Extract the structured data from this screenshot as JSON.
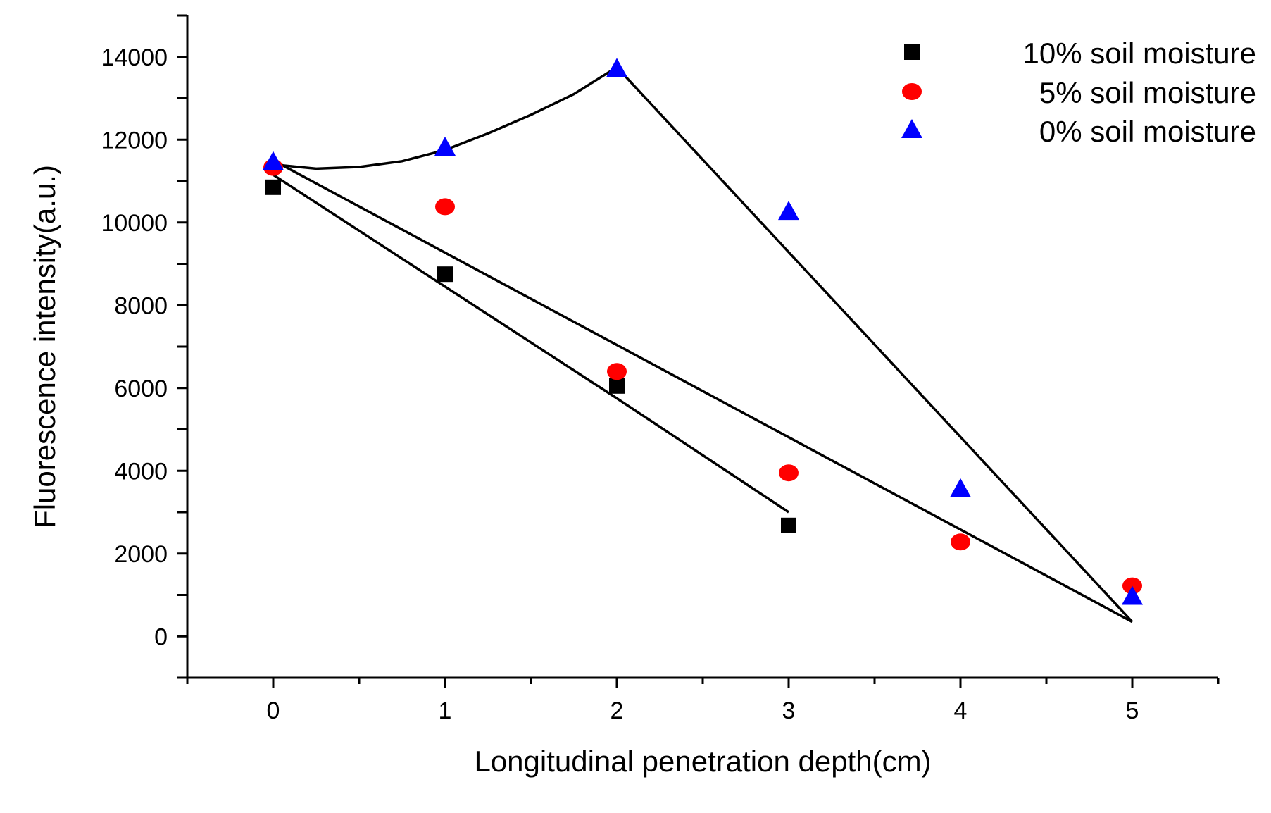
{
  "chart_data": {
    "type": "scatter",
    "title": "",
    "xlabel": "Longitudinal penetration depth(cm)",
    "ylabel": "Fluorescence intensity(a.u.)",
    "xlim": [
      -0.5,
      5.5
    ],
    "ylim": [
      -1000,
      15000
    ],
    "x_ticks": [
      0,
      1,
      2,
      3,
      4,
      5
    ],
    "y_ticks": [
      0,
      2000,
      4000,
      6000,
      8000,
      10000,
      12000,
      14000
    ],
    "grid": false,
    "legend_position": "top-right",
    "series": [
      {
        "name": "10% soil moisture",
        "marker": "square",
        "color": "#000000",
        "x": [
          0,
          1,
          2,
          3
        ],
        "y": [
          10850,
          8750,
          6050,
          2680
        ],
        "fit": {
          "x": [
            0,
            1,
            2,
            3
          ],
          "y": [
            11150,
            8450,
            5750,
            3000
          ]
        }
      },
      {
        "name": "5% soil moisture",
        "marker": "circle",
        "color": "#ff0000",
        "x": [
          0,
          1,
          2,
          3,
          4,
          5
        ],
        "y": [
          11330,
          10380,
          6400,
          3950,
          2280,
          1220
        ],
        "fit": {
          "x": [
            0,
            5
          ],
          "y": [
            11500,
            350
          ]
        }
      },
      {
        "name": "0% soil moisture",
        "marker": "triangle",
        "color": "#0000ff",
        "x": [
          0,
          1,
          2,
          3,
          4,
          5
        ],
        "y": [
          11450,
          11800,
          13700,
          10250,
          3550,
          950
        ],
        "fit": {
          "x": [
            0,
            0.25,
            0.5,
            0.75,
            1,
            1.25,
            1.5,
            1.75,
            2,
            5
          ],
          "y": [
            11400,
            11300,
            11340,
            11480,
            11750,
            12150,
            12600,
            13100,
            13750,
            350
          ]
        }
      }
    ]
  }
}
